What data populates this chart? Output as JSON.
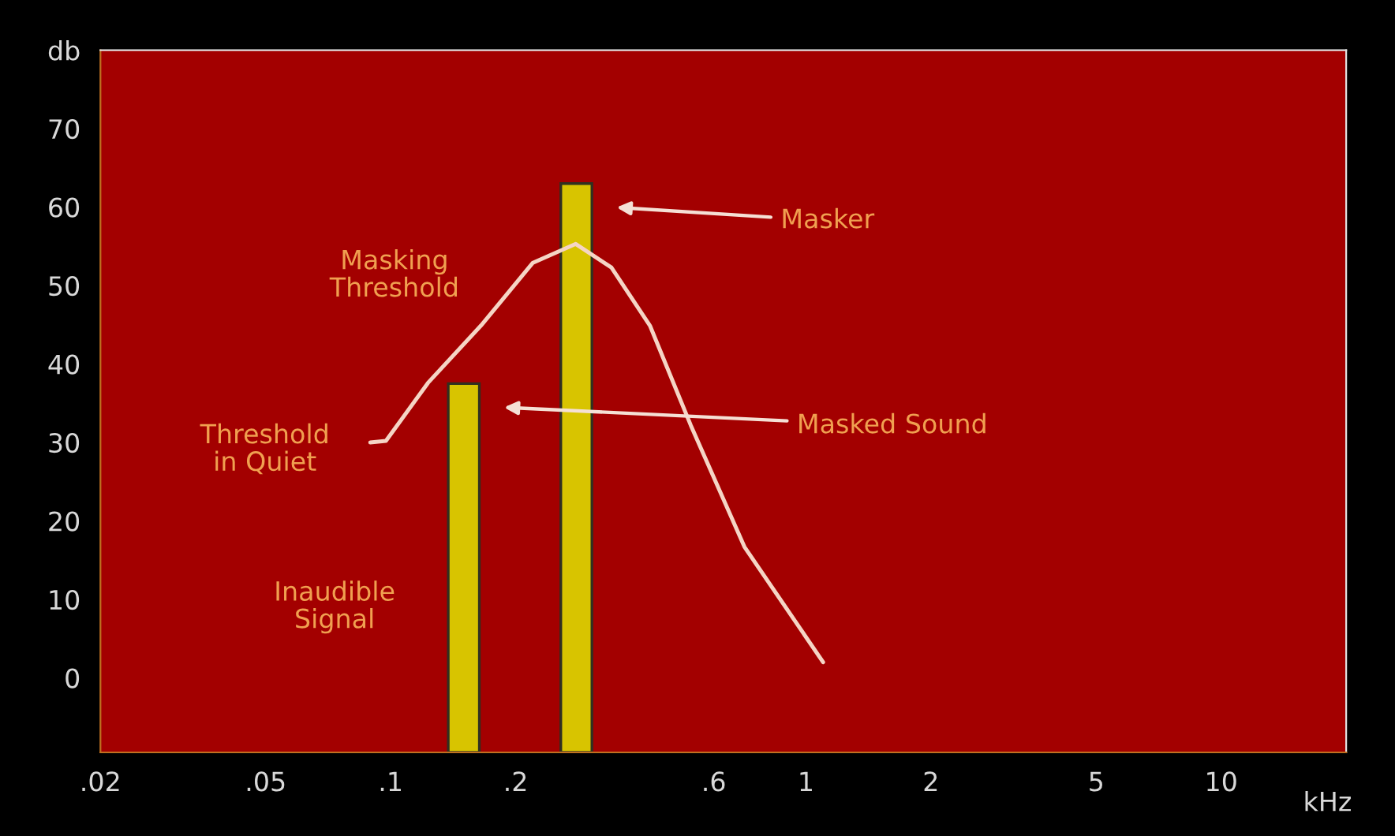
{
  "chart_data": {
    "type": "bar",
    "xlabel": "kHz",
    "log": "x",
    "xlim": [
      0.02,
      20
    ],
    "xticks": [
      {
        "value": 0.02,
        "label": ".02"
      },
      {
        "value": 0.05,
        "label": ".05"
      },
      {
        "value": 0.1,
        "label": ".1"
      },
      {
        "value": 0.2,
        "label": ".2"
      },
      {
        "value": 0.6,
        "label": ".6"
      },
      1,
      2,
      5,
      10
    ],
    "ylim": [
      -9.5,
      80
    ],
    "yticks": [
      0,
      10,
      20,
      30,
      40,
      50,
      60,
      70,
      {
        "value": 80,
        "label": "db"
      }
    ],
    "grid": false,
    "series": [
      {
        "color": "#d8c400",
        "x": [
          0.15,
          0.28
        ],
        "base": [
          -9.5,
          -9.5
        ],
        "values": [
          47,
          72.5
        ]
      },
      {
        "type": "line",
        "color": "#f5d5c5",
        "x": [
          0.0893,
          0.0974,
          0.123,
          0.165,
          0.22,
          0.279,
          0.34,
          0.421,
          0.528,
          0.711,
          1.1
        ],
        "values": [
          30,
          30.2,
          37.6,
          44.9,
          52.9,
          55.3,
          52.3,
          44.9,
          32.2,
          16.7,
          2.0
        ]
      }
    ],
    "annotations": [
      "Masker",
      "Masked Sound",
      "Masking\nThreshold",
      "Threshold\nin Quiet",
      "Inaudible\nSignal"
    ]
  }
}
